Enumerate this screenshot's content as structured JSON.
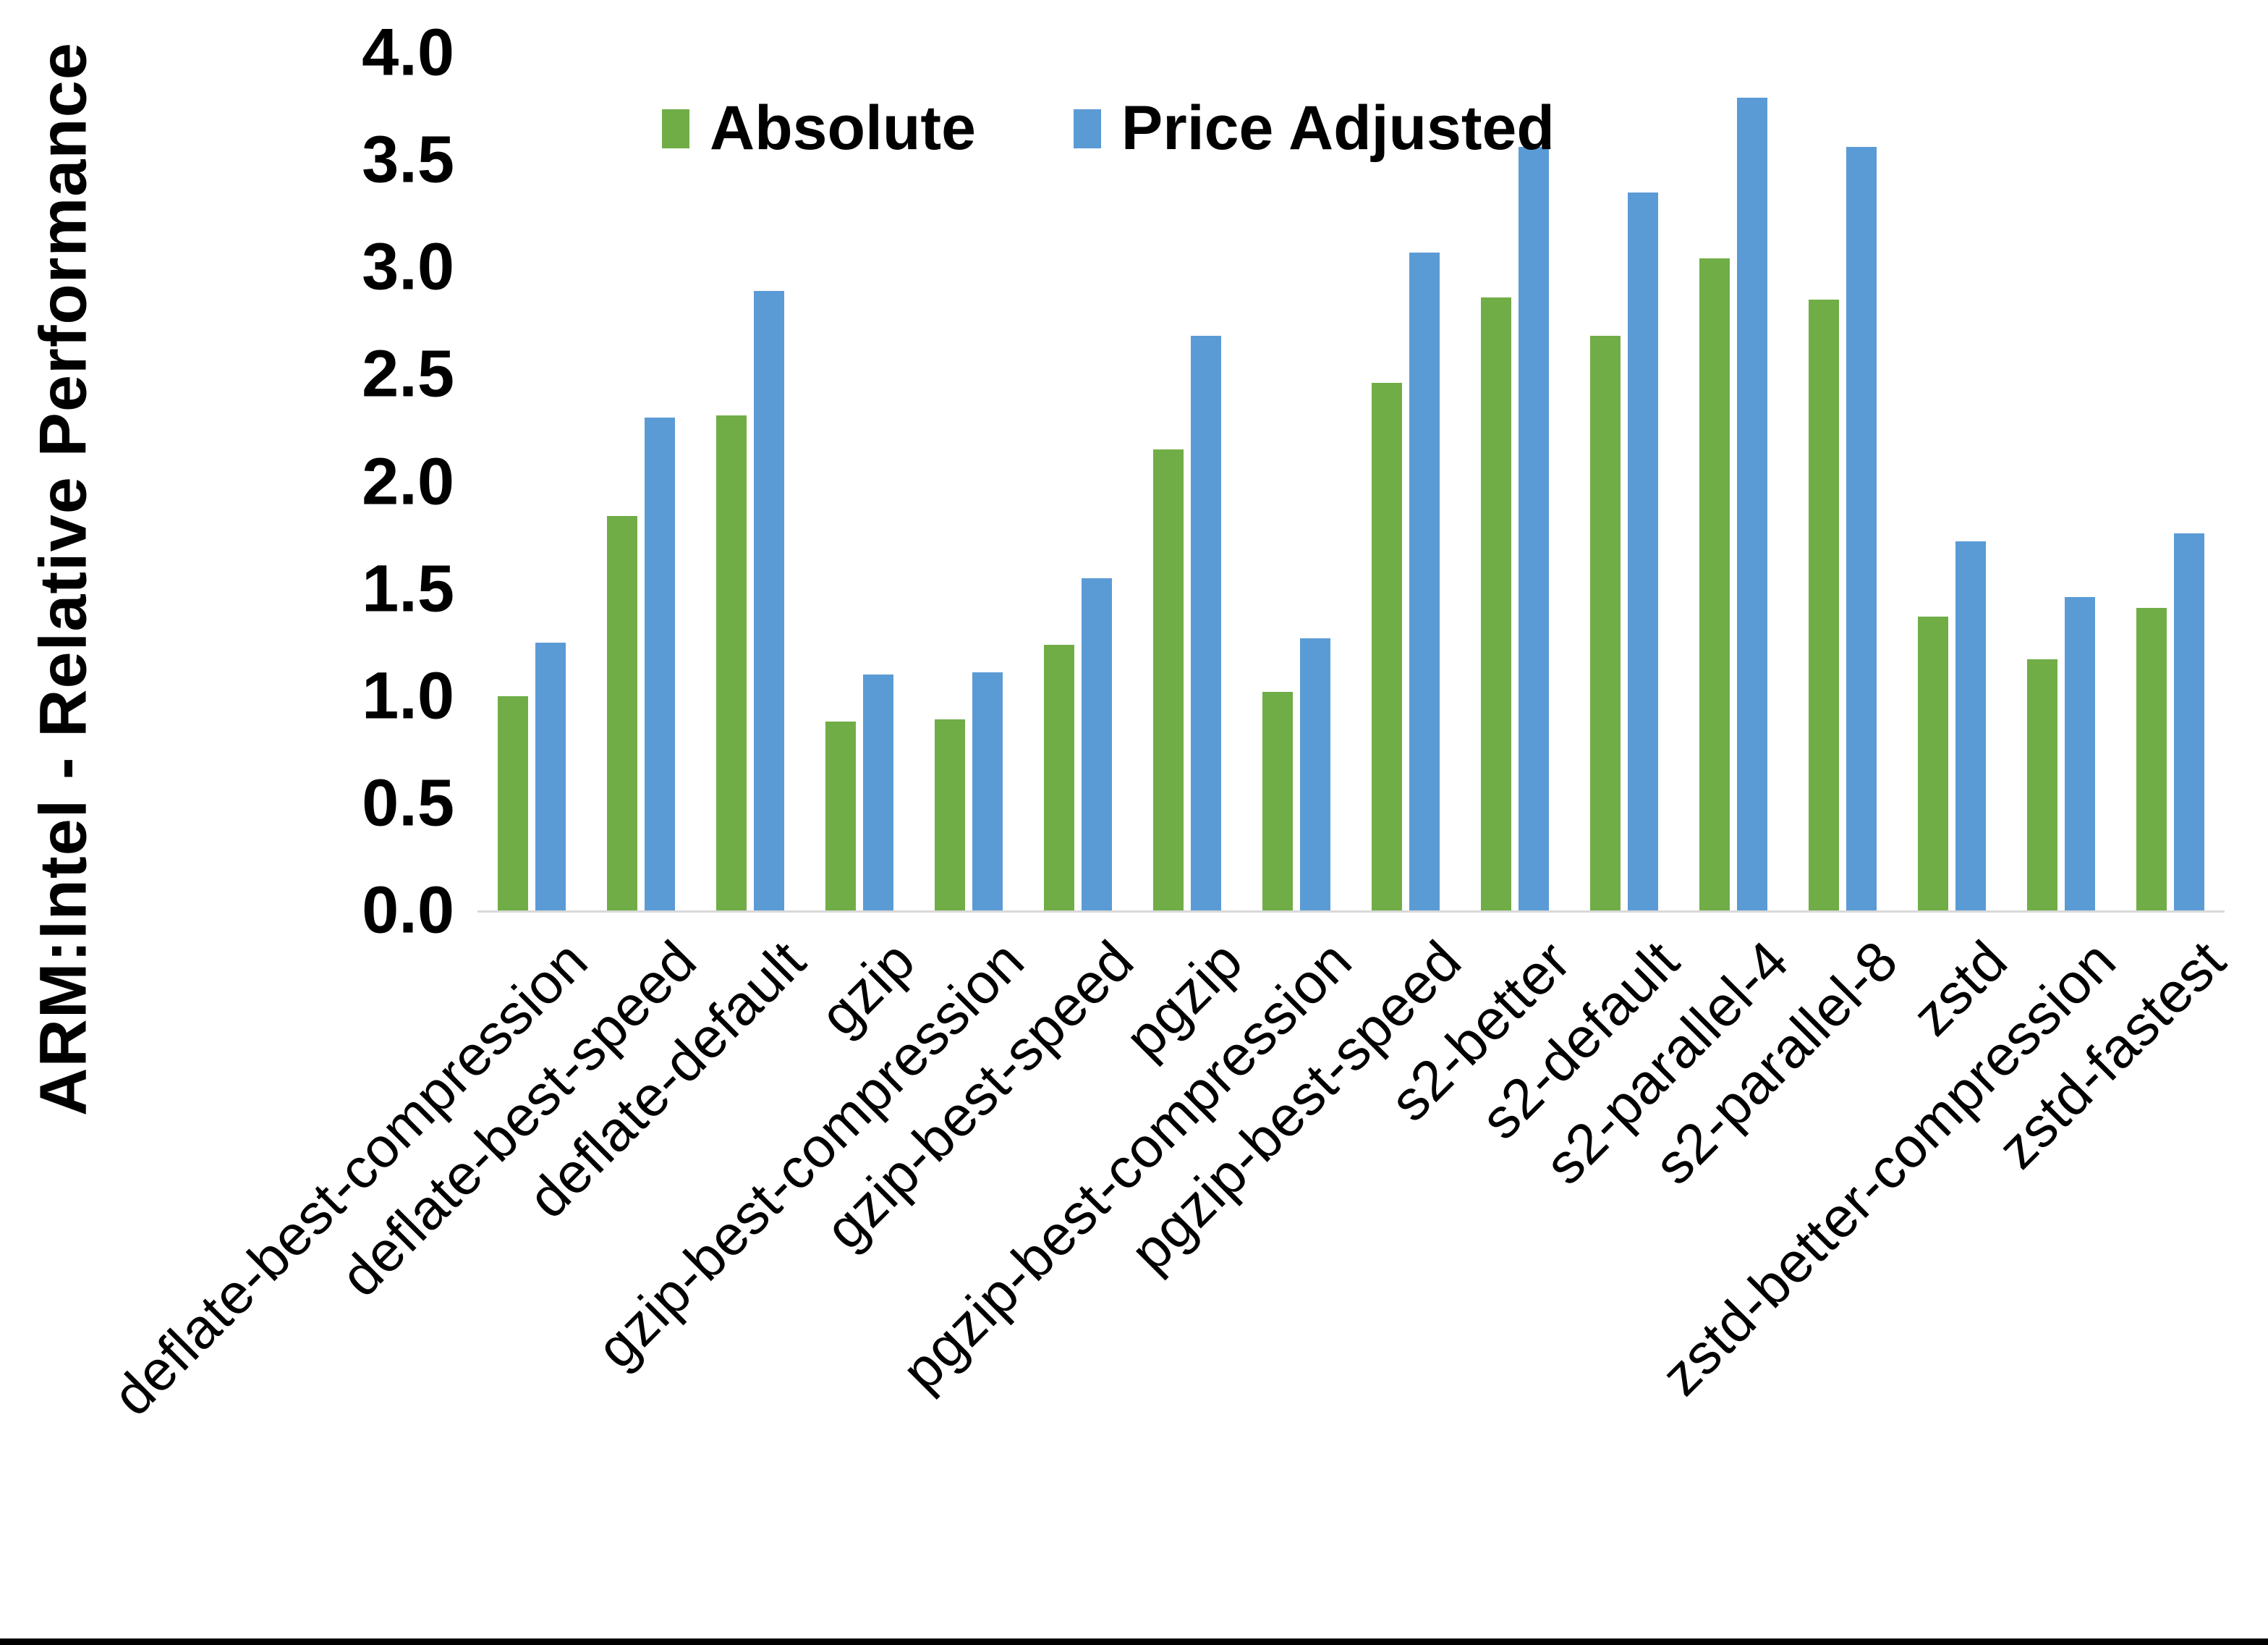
{
  "figure": {
    "y_axis_title": "ARM:Intel - Relative Performance"
  },
  "legend": {
    "items": [
      {
        "label": "Absolute",
        "color": "#70AD47"
      },
      {
        "label": "Price Adjusted",
        "color": "#5B9BD5"
      }
    ]
  },
  "chart_data": {
    "type": "bar",
    "title": "",
    "xlabel": "",
    "ylabel": "ARM:Intel - Relative Performance",
    "ylim": [
      0.0,
      4.0
    ],
    "ytick_step": 0.5,
    "y_ticks": [
      "0.0",
      "0.5",
      "1.0",
      "1.5",
      "2.0",
      "2.5",
      "3.0",
      "3.5",
      "4.0"
    ],
    "grid": false,
    "legend_position": "top-center",
    "categories": [
      "deflate-best-compression",
      "deflate-best-speed",
      "deflate-default",
      "gzip",
      "gzip-best-compression",
      "gzip-best-speed",
      "pgzip",
      "pgzip-best-compression",
      "pgzip-best-speed",
      "s2-better",
      "s2-default",
      "s2-parallel-4",
      "s2-parallel-8",
      "zstd",
      "zstd-better-compression",
      "zstd-fastest"
    ],
    "series": [
      {
        "name": "Absolute",
        "color": "#70AD47",
        "values": [
          1.0,
          1.84,
          2.31,
          0.88,
          0.89,
          1.24,
          2.15,
          1.02,
          2.46,
          2.86,
          2.68,
          3.04,
          2.85,
          1.37,
          1.17,
          1.41
        ]
      },
      {
        "name": "Price Adjusted",
        "color": "#5B9BD5",
        "values": [
          1.25,
          2.3,
          2.89,
          1.1,
          1.11,
          1.55,
          2.68,
          1.27,
          3.07,
          3.56,
          3.35,
          3.79,
          3.56,
          1.72,
          1.46,
          1.76
        ]
      }
    ]
  },
  "colors": {
    "background": "#FFFFFF",
    "axis_line": "#D9D9D9",
    "text": "#000000",
    "bottom_border": "#000000"
  }
}
